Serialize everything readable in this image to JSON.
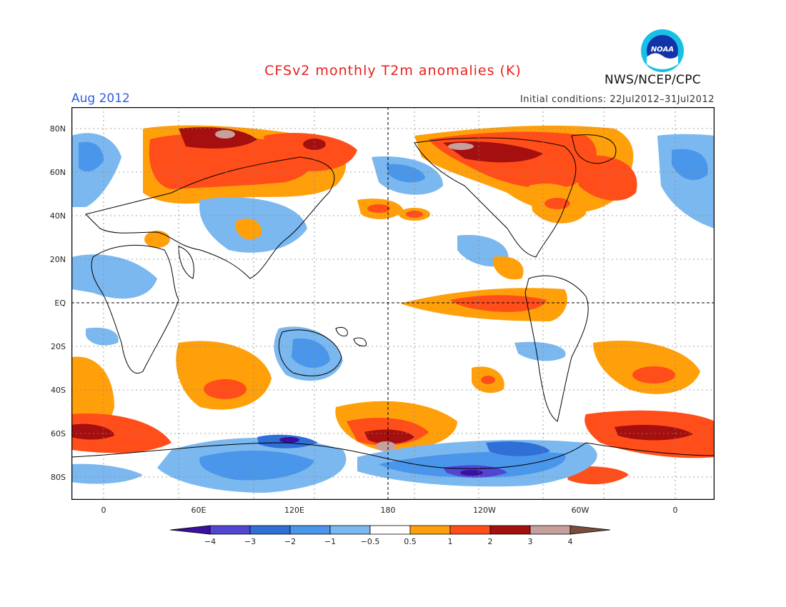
{
  "title": "CFSv2 monthly T2m anomalies (K)",
  "period": "Aug 2012",
  "initial_conditions": "Initial conditions: 22Jul2012–31Jul2012",
  "agency": "NWS/NCEP/CPC",
  "logo_text": "NOAA",
  "map": {
    "lat_labels": [
      "80N",
      "60N",
      "40N",
      "20N",
      "EQ",
      "20S",
      "40S",
      "60S",
      "80S"
    ],
    "lon_labels": [
      "0",
      "60E",
      "120E",
      "180",
      "120W",
      "60W",
      "0"
    ]
  },
  "colorbar": {
    "labels": [
      "−4",
      "−3",
      "−2",
      "−1",
      "−0.5",
      "0.5",
      "1",
      "2",
      "3",
      "4"
    ],
    "colors": [
      "#3a10a0",
      "#5046d2",
      "#2f6fd6",
      "#4a96ea",
      "#7bb8f0",
      "#ffffff",
      "#ffa00a",
      "#ff4e1a",
      "#a50f0f",
      "#c6a09a",
      "#7a4e3c"
    ]
  }
}
